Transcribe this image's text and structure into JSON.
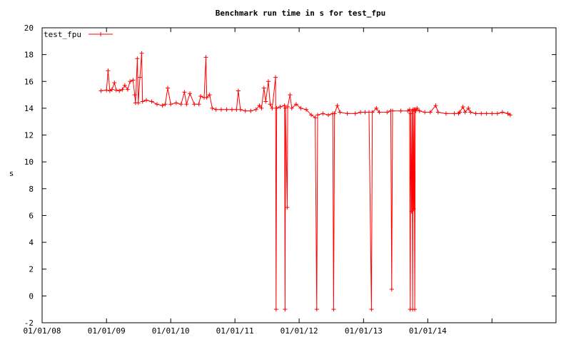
{
  "chart_data": {
    "type": "line",
    "title": "Benchmark run time in s for test_fpu",
    "xlabel": "",
    "ylabel": "s",
    "xlim": [
      "2008-01-01",
      "2015-12-31"
    ],
    "ylim": [
      -2,
      20
    ],
    "x_ticks": [
      "01/01/08",
      "01/01/09",
      "01/01/10",
      "01/01/11",
      "01/01/12",
      "01/01/13",
      "01/01/14"
    ],
    "y_ticks": [
      -2,
      0,
      2,
      4,
      6,
      8,
      10,
      12,
      14,
      16,
      18,
      20
    ],
    "grid": false,
    "legend": "top-left",
    "color": "#ff0000",
    "series": [
      {
        "name": "test_fpu",
        "points": [
          [
            "2008-12-01",
            15.3
          ],
          [
            "2009-01-01",
            15.35
          ],
          [
            "2009-01-10",
            16.8
          ],
          [
            "2009-01-20",
            15.3
          ],
          [
            "2009-02-01",
            15.4
          ],
          [
            "2009-02-15",
            15.9
          ],
          [
            "2009-02-25",
            15.35
          ],
          [
            "2009-03-15",
            15.3
          ],
          [
            "2009-04-01",
            15.4
          ],
          [
            "2009-04-15",
            15.7
          ],
          [
            "2009-05-01",
            15.4
          ],
          [
            "2009-05-15",
            16.0
          ],
          [
            "2009-06-01",
            16.1
          ],
          [
            "2009-06-10",
            15.0
          ],
          [
            "2009-06-15",
            14.4
          ],
          [
            "2009-06-25",
            17.7
          ],
          [
            "2009-07-01",
            14.4
          ],
          [
            "2009-07-10",
            16.3
          ],
          [
            "2009-07-20",
            18.1
          ],
          [
            "2009-07-25",
            14.5
          ],
          [
            "2009-08-15",
            14.6
          ],
          [
            "2009-09-15",
            14.5
          ],
          [
            "2009-10-15",
            14.3
          ],
          [
            "2009-11-15",
            14.2
          ],
          [
            "2009-12-01",
            14.3
          ],
          [
            "2009-12-15",
            15.5
          ],
          [
            "2010-01-01",
            14.3
          ],
          [
            "2010-02-01",
            14.4
          ],
          [
            "2010-03-01",
            14.3
          ],
          [
            "2010-03-20",
            15.2
          ],
          [
            "2010-04-01",
            14.3
          ],
          [
            "2010-04-20",
            15.1
          ],
          [
            "2010-05-15",
            14.3
          ],
          [
            "2010-06-10",
            14.3
          ],
          [
            "2010-06-20",
            14.9
          ],
          [
            "2010-07-10",
            14.8
          ],
          [
            "2010-07-20",
            17.8
          ],
          [
            "2010-07-25",
            14.8
          ],
          [
            "2010-08-10",
            15.0
          ],
          [
            "2010-08-25",
            14.0
          ],
          [
            "2010-09-15",
            13.9
          ],
          [
            "2010-10-15",
            13.9
          ],
          [
            "2010-11-15",
            13.9
          ],
          [
            "2010-12-15",
            13.9
          ],
          [
            "2011-01-10",
            13.9
          ],
          [
            "2011-01-20",
            15.3
          ],
          [
            "2011-02-01",
            13.9
          ],
          [
            "2011-03-01",
            13.8
          ],
          [
            "2011-04-01",
            13.8
          ],
          [
            "2011-05-01",
            13.9
          ],
          [
            "2011-05-20",
            14.2
          ],
          [
            "2011-06-01",
            14.0
          ],
          [
            "2011-06-15",
            15.5
          ],
          [
            "2011-06-25",
            14.5
          ],
          [
            "2011-07-10",
            16.0
          ],
          [
            "2011-07-20",
            14.3
          ],
          [
            "2011-08-01",
            14.0
          ],
          [
            "2011-08-20",
            16.3
          ],
          [
            "2011-08-23",
            -1
          ],
          [
            "2011-08-26",
            14.0
          ],
          [
            "2011-09-15",
            14.1
          ],
          [
            "2011-10-10",
            14.2
          ],
          [
            "2011-10-13",
            -1
          ],
          [
            "2011-10-16",
            14.0
          ],
          [
            "2011-10-25",
            6.6
          ],
          [
            "2011-10-28",
            14.1
          ],
          [
            "2011-11-10",
            15.0
          ],
          [
            "2011-11-20",
            14.0
          ],
          [
            "2011-12-15",
            14.3
          ],
          [
            "2012-01-10",
            14.0
          ],
          [
            "2012-02-10",
            13.9
          ],
          [
            "2012-03-10",
            13.5
          ],
          [
            "2012-04-01",
            13.3
          ],
          [
            "2012-04-10",
            -1
          ],
          [
            "2012-04-15",
            13.5
          ],
          [
            "2012-05-15",
            13.6
          ],
          [
            "2012-06-15",
            13.5
          ],
          [
            "2012-07-10",
            13.6
          ],
          [
            "2012-07-15",
            -1
          ],
          [
            "2012-07-20",
            13.6
          ],
          [
            "2012-08-05",
            14.2
          ],
          [
            "2012-08-20",
            13.7
          ],
          [
            "2012-10-01",
            13.6
          ],
          [
            "2012-11-15",
            13.6
          ],
          [
            "2012-12-15",
            13.7
          ],
          [
            "2013-01-10",
            13.7
          ],
          [
            "2013-02-01",
            13.7
          ],
          [
            "2013-02-15",
            -1
          ],
          [
            "2013-02-20",
            13.7
          ],
          [
            "2013-03-15",
            14.0
          ],
          [
            "2013-04-01",
            13.7
          ],
          [
            "2013-05-15",
            13.7
          ],
          [
            "2013-06-05",
            13.8
          ],
          [
            "2013-06-10",
            0.5
          ],
          [
            "2013-06-15",
            13.8
          ],
          [
            "2013-08-01",
            13.8
          ],
          [
            "2013-09-10",
            13.8
          ],
          [
            "2013-09-20",
            13.9
          ],
          [
            "2013-09-23",
            -1
          ],
          [
            "2013-09-26",
            13.6
          ],
          [
            "2013-10-01",
            6.3
          ],
          [
            "2013-10-04",
            13.8
          ],
          [
            "2013-10-07",
            -1
          ],
          [
            "2013-10-10",
            13.9
          ],
          [
            "2013-10-13",
            6.5
          ],
          [
            "2013-10-16",
            13.9
          ],
          [
            "2013-10-19",
            -1
          ],
          [
            "2013-10-22",
            13.9
          ],
          [
            "2013-10-25",
            13.8
          ],
          [
            "2013-11-01",
            14.0
          ],
          [
            "2013-11-15",
            13.8
          ],
          [
            "2013-12-15",
            13.7
          ],
          [
            "2014-01-15",
            13.7
          ],
          [
            "2014-02-15",
            14.2
          ],
          [
            "2014-03-01",
            13.7
          ],
          [
            "2014-04-15",
            13.6
          ],
          [
            "2014-06-01",
            13.6
          ],
          [
            "2014-06-25",
            13.6
          ],
          [
            "2014-07-01",
            13.7
          ],
          [
            "2014-07-20",
            14.1
          ],
          [
            "2014-08-01",
            13.7
          ],
          [
            "2014-08-20",
            14.0
          ],
          [
            "2014-09-01",
            13.7
          ],
          [
            "2014-10-01",
            13.6
          ],
          [
            "2014-11-01",
            13.6
          ],
          [
            "2014-12-01",
            13.6
          ],
          [
            "2015-01-01",
            13.6
          ],
          [
            "2015-02-01",
            13.6
          ],
          [
            "2015-03-01",
            13.7
          ],
          [
            "2015-04-01",
            13.6
          ],
          [
            "2015-04-15",
            13.5
          ]
        ]
      }
    ]
  }
}
